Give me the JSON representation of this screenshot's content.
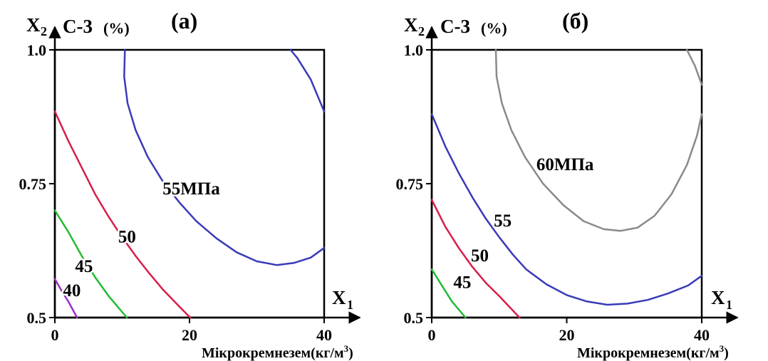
{
  "chart_data": [
    {
      "type": "contour",
      "title": "(а)",
      "x_axis_symbol": "X",
      "x_axis_subscript": "1",
      "y_axis_symbol": "X",
      "y_axis_subscript": "2",
      "ylabel": "С-3",
      "ylabel_unit": "(%)",
      "xlabel": "Мікрокремнезем",
      "xlabel_unit_prefix": "(кг/м",
      "xlabel_unit_exp": "3",
      "xlabel_unit_suffix": ")",
      "xlim": [
        0,
        40
      ],
      "ylim": [
        0.5,
        1.0
      ],
      "x_ticks": [
        "0",
        "20",
        "40"
      ],
      "y_ticks": [
        "0.5",
        "0.75",
        "1.0"
      ],
      "y_tick_values": [
        0.5,
        0.75,
        1.0
      ],
      "x_tick_values": [
        0,
        20,
        40
      ],
      "contours": [
        {
          "level": "40",
          "color": "#9b30c8",
          "points": [
            [
              0,
              0.572
            ],
            [
              1,
              0.55
            ],
            [
              2,
              0.53
            ],
            [
              3.3,
              0.5
            ]
          ]
        },
        {
          "level": "45",
          "color": "#22bb33",
          "points": [
            [
              0,
              0.7
            ],
            [
              2,
              0.66
            ],
            [
              4,
              0.615
            ],
            [
              6,
              0.575
            ],
            [
              8,
              0.54
            ],
            [
              10.7,
              0.5
            ]
          ]
        },
        {
          "level": "50",
          "color": "#d81e48",
          "points": [
            [
              0,
              0.885
            ],
            [
              2,
              0.83
            ],
            [
              4,
              0.78
            ],
            [
              6,
              0.73
            ],
            [
              8,
              0.688
            ],
            [
              10,
              0.65
            ],
            [
              12,
              0.615
            ],
            [
              14,
              0.583
            ],
            [
              16,
              0.553
            ],
            [
              18,
              0.527
            ],
            [
              20.1,
              0.5
            ]
          ]
        },
        {
          "level": "55МПа",
          "color": "#3a3ab8",
          "points": [
            [
              40,
              0.885
            ],
            [
              38,
              0.945
            ],
            [
              36,
              0.985
            ],
            [
              35,
              1.0
            ],
            null,
            [
              10.4,
              1.0
            ],
            [
              10.3,
              0.95
            ],
            [
              10.8,
              0.9
            ],
            [
              12,
              0.85
            ],
            [
              13.8,
              0.8
            ],
            [
              16,
              0.755
            ],
            [
              18.5,
              0.715
            ],
            [
              21,
              0.68
            ],
            [
              24,
              0.648
            ],
            [
              27,
              0.622
            ],
            [
              30,
              0.605
            ],
            [
              33,
              0.598
            ],
            [
              35.5,
              0.602
            ],
            [
              38,
              0.612
            ],
            [
              40,
              0.63
            ]
          ]
        }
      ],
      "contour_labels": [
        {
          "text": "55МПа",
          "x": 16,
          "y": 0.73
        },
        {
          "text": "50",
          "x": 9.4,
          "y": 0.64
        },
        {
          "text": "45",
          "x": 3,
          "y": 0.585
        },
        {
          "text": "40",
          "x": 1.2,
          "y": 0.54
        }
      ]
    },
    {
      "type": "contour",
      "title": "(б)",
      "x_axis_symbol": "X",
      "x_axis_subscript": "1",
      "y_axis_symbol": "X",
      "y_axis_subscript": "2",
      "ylabel": "С-3",
      "ylabel_unit": "(%)",
      "xlabel": "Мікрокремнезем",
      "xlabel_unit_prefix": "(кг/м",
      "xlabel_unit_exp": "3",
      "xlabel_unit_suffix": ")",
      "xlim": [
        0,
        40
      ],
      "ylim": [
        0.5,
        1.0
      ],
      "x_ticks": [
        "0",
        "20",
        "40"
      ],
      "y_ticks": [
        "0.5",
        "0.75",
        "1.0"
      ],
      "y_tick_values": [
        0.5,
        0.75,
        1.0
      ],
      "x_tick_values": [
        0,
        20,
        40
      ],
      "contours": [
        {
          "level": "45",
          "color": "#22bb33",
          "points": [
            [
              0,
              0.59
            ],
            [
              1.5,
              0.56
            ],
            [
              3,
              0.53
            ],
            [
              5,
              0.5
            ]
          ]
        },
        {
          "level": "50",
          "color": "#d81e48",
          "points": [
            [
              0,
              0.72
            ],
            [
              2,
              0.67
            ],
            [
              4,
              0.63
            ],
            [
              6,
              0.595
            ],
            [
              8,
              0.565
            ],
            [
              10,
              0.54
            ],
            [
              13,
              0.5
            ]
          ]
        },
        {
          "level": "55",
          "color": "#3a3ab8",
          "points": [
            [
              0,
              0.88
            ],
            [
              2,
              0.82
            ],
            [
              4,
              0.77
            ],
            [
              6,
              0.725
            ],
            [
              8,
              0.685
            ],
            [
              10,
              0.65
            ],
            [
              12,
              0.618
            ],
            [
              14,
              0.59
            ],
            [
              17,
              0.562
            ],
            [
              20,
              0.542
            ],
            [
              23,
              0.53
            ],
            [
              26,
              0.524
            ],
            [
              29,
              0.526
            ],
            [
              32,
              0.533
            ],
            [
              35,
              0.545
            ],
            [
              38,
              0.56
            ],
            [
              40,
              0.578
            ]
          ]
        },
        {
          "level": "60МПа",
          "color": "#8a8a8a",
          "points": [
            [
              9.5,
              1.0
            ],
            [
              9.6,
              0.95
            ],
            [
              10.4,
              0.9
            ],
            [
              11.8,
              0.85
            ],
            [
              13.8,
              0.8
            ],
            [
              16.5,
              0.75
            ],
            [
              19.5,
              0.71
            ],
            [
              22.5,
              0.68
            ],
            [
              25.5,
              0.665
            ],
            [
              28,
              0.662
            ],
            [
              30.5,
              0.668
            ],
            [
              33,
              0.69
            ],
            [
              35.5,
              0.73
            ],
            [
              37.8,
              0.785
            ],
            [
              39.3,
              0.84
            ],
            [
              40,
              0.88
            ],
            null,
            [
              40,
              0.935
            ],
            [
              39,
              0.97
            ],
            [
              37.8,
              1.0
            ]
          ]
        }
      ],
      "contour_labels": [
        {
          "text": "60МПа",
          "x": 15.5,
          "y": 0.775
        },
        {
          "text": "55",
          "x": 9.2,
          "y": 0.67
        },
        {
          "text": "50",
          "x": 5.8,
          "y": 0.605
        },
        {
          "text": "45",
          "x": 3.2,
          "y": 0.555
        }
      ]
    }
  ]
}
